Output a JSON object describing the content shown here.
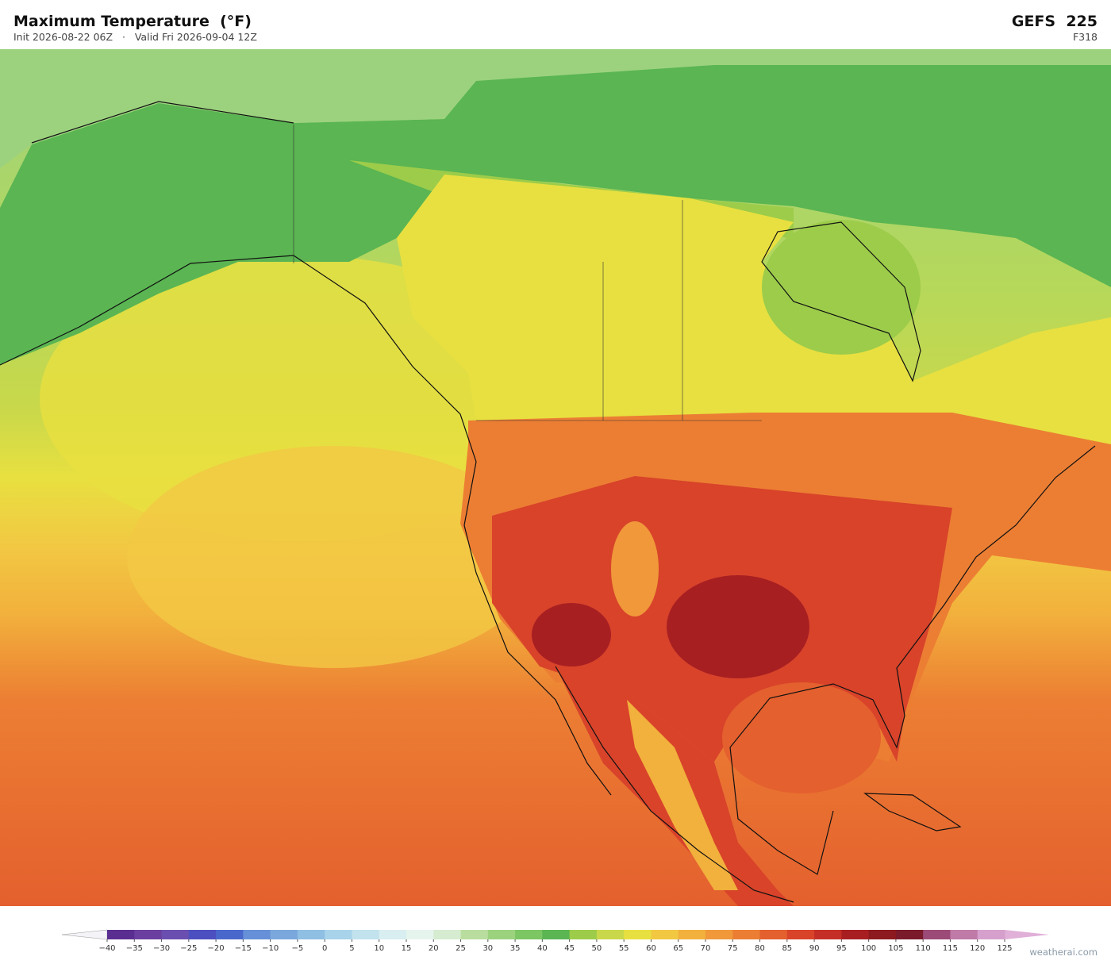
{
  "header": {
    "title": "Maximum Temperature  (°F)",
    "subtitle": "Init 2026-08-22 06Z   ·   Valid Fri 2026-09-04 12Z",
    "model": "GEFS  225",
    "forecast_hour": "F318"
  },
  "colorbar": {
    "ticks": [
      {
        "value": -40,
        "label": "−40"
      },
      {
        "value": -35,
        "label": "−35"
      },
      {
        "value": -30,
        "label": "−30"
      },
      {
        "value": -25,
        "label": "−25"
      },
      {
        "value": -20,
        "label": "−20"
      },
      {
        "value": -15,
        "label": "−15"
      },
      {
        "value": -10,
        "label": "−10"
      },
      {
        "value": -5,
        "label": "−5"
      },
      0,
      5,
      10,
      15,
      20,
      25,
      30,
      35,
      40,
      45,
      50,
      55,
      60,
      65,
      70,
      75,
      80,
      85,
      90,
      95,
      100,
      105,
      110,
      115,
      120,
      125
    ],
    "colors": [
      "#5a2d91",
      "#6a3fa0",
      "#6b4fb0",
      "#4c4fc0",
      "#4a68cc",
      "#6690d8",
      "#7aa8dc",
      "#8fbfe3",
      "#a8d3ea",
      "#c2e2ee",
      "#d8eef0",
      "#e6f4ee",
      "#d6ecd0",
      "#b8dd9e",
      "#9cd27e",
      "#7cc664",
      "#5ab552",
      "#9ccc4a",
      "#c9d84a",
      "#e8e040",
      "#f2c843",
      "#f2b03c",
      "#f0983a",
      "#ec7e33",
      "#e4602e",
      "#d8432a",
      "#c42e26",
      "#a81f22",
      "#8c1a1f",
      "#7a1a2a",
      "#9c4a78",
      "#c07aa8",
      "#d6a0cc"
    ],
    "under_color": "#f4f4f8",
    "over_color": "#e0b0d8"
  },
  "watermark": "weatherai.com"
}
